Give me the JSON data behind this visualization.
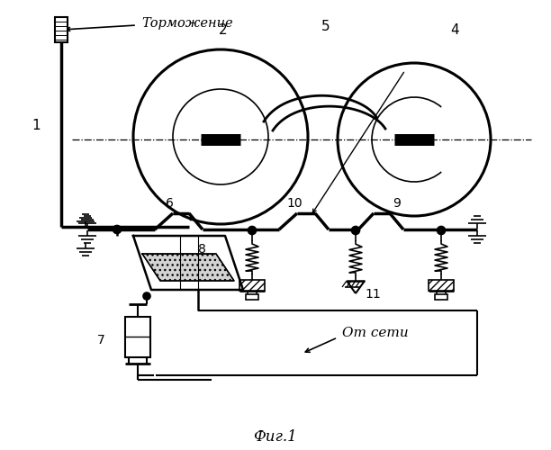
{
  "title": "Фиг.1",
  "label_tormozhenie": "Торможение",
  "label_ot_seti": "От сети",
  "background_color": "#ffffff",
  "fig_width": 6.12,
  "fig_height": 5.0,
  "dpi": 100
}
